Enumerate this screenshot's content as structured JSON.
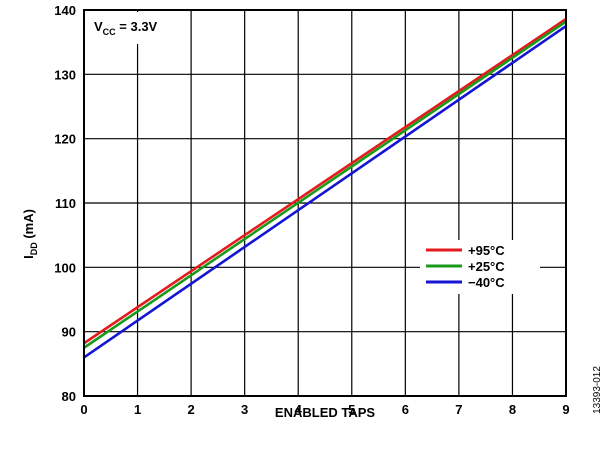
{
  "chart_data": {
    "type": "line",
    "xlabel": "ENABLED TAPS",
    "ylabel": {
      "main": "I",
      "sub": "DD",
      "rest": " (mA)"
    },
    "xlim": [
      0,
      9
    ],
    "ylim": [
      80,
      140
    ],
    "xticks": [
      "0",
      "1",
      "2",
      "3",
      "4",
      "5",
      "6",
      "7",
      "8",
      "9"
    ],
    "yticks": [
      "80",
      "90",
      "100",
      "110",
      "120",
      "130",
      "140"
    ],
    "grid": true,
    "legend_position": "right",
    "annotation": {
      "main": "V",
      "sub": "CC",
      "rest": " = 3.3V"
    },
    "figure_id": "13393-012",
    "series": [
      {
        "name": "+95°C",
        "color": "#e41a1c",
        "x": [
          0,
          9
        ],
        "y": [
          88.2,
          138.6
        ]
      },
      {
        "name": "+25°C",
        "color": "#1a9a1a",
        "x": [
          0,
          9
        ],
        "y": [
          87.5,
          138.2
        ]
      },
      {
        "name": "−40°C",
        "color": "#1414d2",
        "x": [
          0,
          9
        ],
        "y": [
          86.0,
          137.5
        ]
      }
    ]
  }
}
